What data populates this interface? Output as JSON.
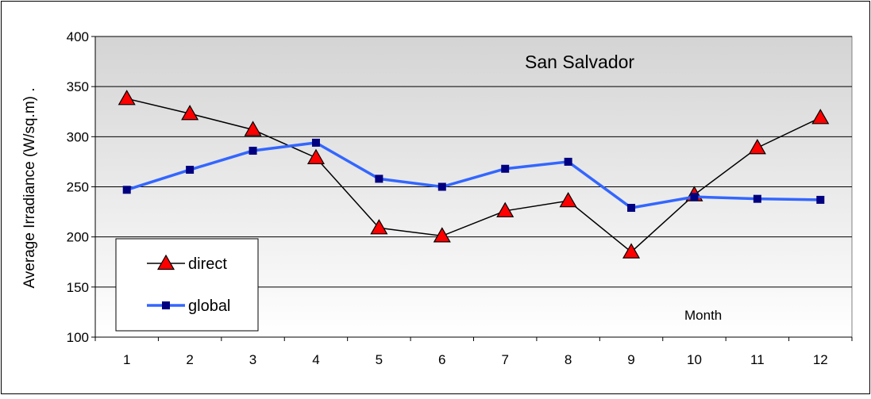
{
  "chart_data": {
    "type": "line",
    "title": "San Salvador",
    "xlabel": "Month",
    "ylabel": "Average Irradiance (W/sq.m)  .",
    "ylim": [
      100,
      400
    ],
    "yticks": [
      100,
      150,
      200,
      250,
      300,
      350,
      400
    ],
    "categories": [
      "1",
      "2",
      "3",
      "4",
      "5",
      "6",
      "7",
      "8",
      "9",
      "10",
      "11",
      "12"
    ],
    "grid": true,
    "legend_position": "bottom-left",
    "series": [
      {
        "name": "direct",
        "values": [
          338,
          323,
          307,
          279,
          209,
          201,
          226,
          236,
          185,
          242,
          289,
          319
        ],
        "line_color": "#000000",
        "marker": "triangle",
        "marker_color": "#ff0000"
      },
      {
        "name": "global",
        "values": [
          247,
          267,
          286,
          294,
          258,
          250,
          268,
          275,
          229,
          240,
          238,
          237
        ],
        "line_color": "#3366ff",
        "marker": "square",
        "marker_color": "#000080"
      }
    ]
  }
}
